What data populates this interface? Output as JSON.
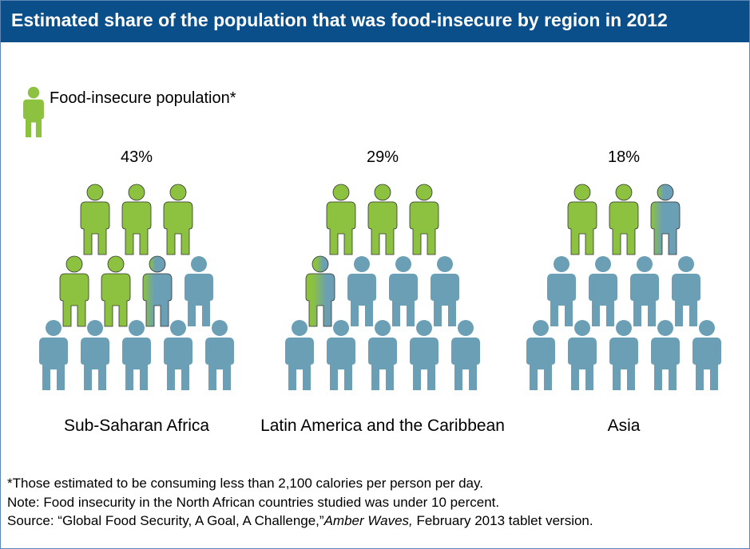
{
  "title": "Estimated share of the population that was food-insecure by region in 2012",
  "legend": {
    "label": "Food-insecure population*",
    "icon": "person-icon"
  },
  "colors": {
    "insecure": "#8cc23f",
    "secure": "#6a9fb5",
    "title_bg": "#0b4f8a",
    "border": "#5b86b5"
  },
  "chart_data": {
    "type": "pictogram",
    "icons_per_region": 12,
    "categories": [
      "Sub-Saharan Africa",
      "Latin America and the Caribbean",
      "Asia"
    ],
    "values": [
      43,
      29,
      18
    ],
    "value_labels": [
      "43%",
      "29%",
      "18%"
    ],
    "unit": "%"
  },
  "footnotes": {
    "asterisk": "*Those estimated to be consuming less than 2,100 calories per person per day.",
    "note": "Note: Food insecurity in the North African countries studied was under 10 percent.",
    "source_prefix": "Source: “Global Food Security, A Goal, A Challenge,”",
    "source_italic": "Amber Waves,",
    "source_suffix": " February 2013 tablet version."
  }
}
